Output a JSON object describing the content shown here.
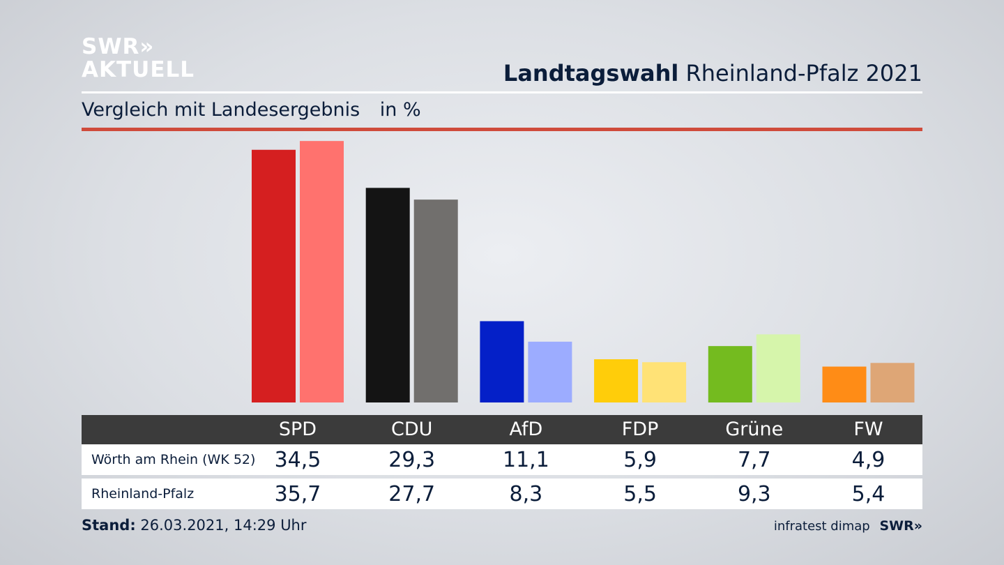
{
  "logo": {
    "line1": "SWR»",
    "line2": "AKTUELL"
  },
  "header": {
    "title_bold": "Landtagswahl",
    "title_rest": "Rheinland-Pfalz 2021"
  },
  "subtitle": {
    "text": "Vergleich mit Landesergebnis",
    "unit": "in %"
  },
  "footer": {
    "stand_label": "Stand:",
    "stand_value": "26.03.2021, 14:29 Uhr",
    "source": "infratest dimap",
    "brand": "SWR»"
  },
  "colors": {
    "district": [
      "#d51f20",
      "#141414",
      "#0420c8",
      "#ffcd0a",
      "#74bb1f",
      "#ff8c16"
    ],
    "state": [
      "#ff726e",
      "#716f6d",
      "#9cacff",
      "#ffe276",
      "#d6f5ab",
      "#dea676"
    ]
  },
  "chart_data": {
    "type": "bar",
    "title": "Landtagswahl Rheinland-Pfalz 2021",
    "subtitle": "Vergleich mit Landesergebnis",
    "ylabel": "in %",
    "categories": [
      "SPD",
      "CDU",
      "AfD",
      "FDP",
      "Grüne",
      "FW"
    ],
    "series": [
      {
        "name": "Wörth am Rhein (WK 52)",
        "values": [
          "34,5",
          "29,3",
          "11,1",
          "5,9",
          "7,7",
          "4,9"
        ]
      },
      {
        "name": "Rheinland-Pfalz",
        "values": [
          "35,7",
          "27,7",
          "8,3",
          "5,5",
          "9,3",
          "5,4"
        ]
      }
    ]
  }
}
